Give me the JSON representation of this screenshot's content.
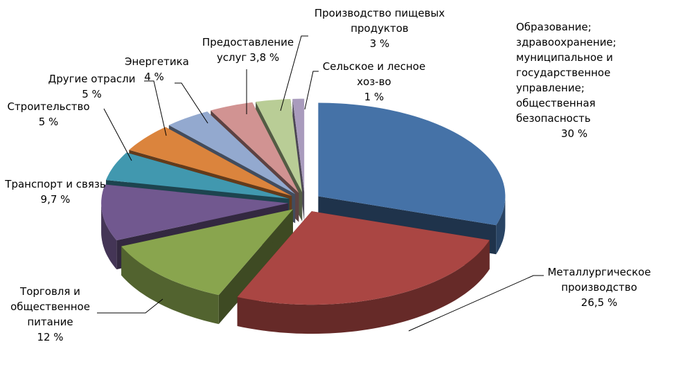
{
  "chart_data": {
    "type": "pie",
    "categories": [
      "Образование; здравоохранение; муниципальное и государственное управление; общественная безопасность",
      "Металлургическое производство",
      "Торговля и общественное питание",
      "Транспорт и связь",
      "Строительство",
      "Другие отрасли",
      "Энергетика",
      "Предоставление услуг",
      "Производство пищевых продуктов",
      "Сельское и лесное хоз-во"
    ],
    "values": [
      30,
      26.5,
      12,
      9.7,
      5,
      5,
      4,
      3.8,
      3,
      1
    ],
    "value_labels": [
      "30 %",
      "26,5 %",
      "12 %",
      "9,7 %",
      "5 %",
      "5 %",
      "4 %",
      "3,8 %",
      "3 %",
      "1 %"
    ],
    "colors": [
      "#4572a7",
      "#aa4643",
      "#89a54e",
      "#71588f",
      "#4198af",
      "#db843d",
      "#93a9cf",
      "#d19392",
      "#b9cd96",
      "#a99bbd"
    ]
  }
}
